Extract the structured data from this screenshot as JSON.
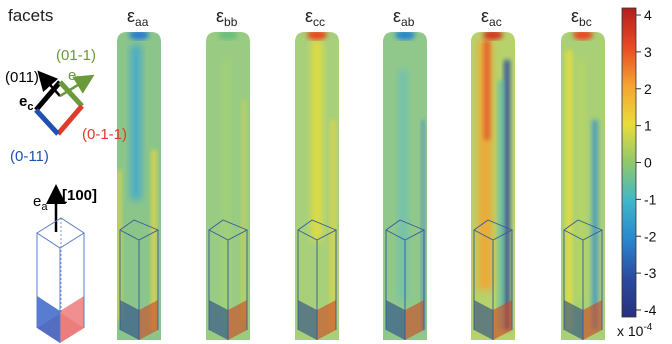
{
  "facets_label": "facets",
  "panels": [
    {
      "symbol": "ε",
      "subscript": "aa"
    },
    {
      "symbol": "ε",
      "subscript": "bb"
    },
    {
      "symbol": "ε",
      "subscript": "cc"
    },
    {
      "symbol": "ε",
      "subscript": "ab"
    },
    {
      "symbol": "ε",
      "subscript": "ac"
    },
    {
      "symbol": "ε",
      "subscript": "bc"
    }
  ],
  "crystal": {
    "dir_011": "(011)",
    "dir_01m1": "(01-1)",
    "dir_0m11": "(0-11)",
    "dir_0m1m1": "(0-1-1)",
    "ec_base": "e",
    "ec_sub": "c",
    "eb_base": "e",
    "eb_sub": "b",
    "ea_base": "e",
    "ea_sub": "a",
    "dir_100": "[100]"
  },
  "colorbar": {
    "ticks": [
      "4",
      "3",
      "2",
      "1",
      "0",
      "-1",
      "-2",
      "-3",
      "-4"
    ],
    "scale_base": "x 10",
    "scale_exp": "-4",
    "colors": [
      "#b31e1e",
      "#e84a23",
      "#f4a331",
      "#e9dd3a",
      "#8fc86b",
      "#3fb7c9",
      "#2a86cd",
      "#2b4aa0",
      "#27307e"
    ]
  }
}
